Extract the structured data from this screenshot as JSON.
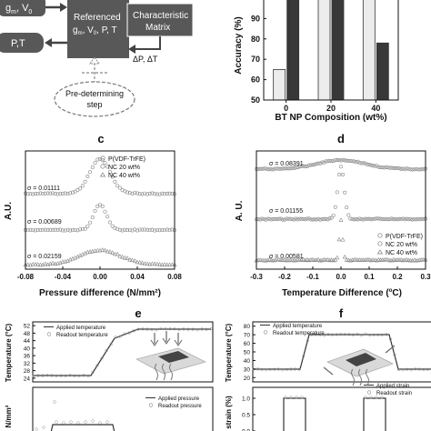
{
  "diagram": {
    "node_gv": "g",
    "node_gv_sub": "m",
    "node_gv_rest": ", V",
    "node_gv_sub2": "0",
    "node_pt": "P,T",
    "ref_line1": "Referenced",
    "ref_line2": "g",
    "ref_line2_sub": "m",
    "ref_line2_rest": ", V",
    "ref_line2_sub2": "0",
    "ref_line2_end": ", P, T",
    "char_line1": "Characteristic",
    "char_line2": "Matrix",
    "delta_label": "ΔP, ΔT",
    "pre_line1": "Pre-determining",
    "pre_line2": "step"
  },
  "chart_data": [
    {
      "id": "b",
      "type": "bar",
      "categories": [
        "0",
        "20",
        "40"
      ],
      "series": [
        {
          "name": "",
          "values": [
            65,
            100,
            100
          ],
          "color": "#ececec"
        },
        {
          "name": "",
          "values": [
            100,
            100,
            78
          ],
          "color": "#383838"
        }
      ],
      "xlabel": "BT NP Composition (wt%)",
      "ylabel": "Accuracy (%)",
      "ylim": [
        50,
        100
      ],
      "yticks": [
        "50",
        "60",
        "70",
        "80",
        "90"
      ]
    },
    {
      "id": "c",
      "panel_label": "c",
      "type": "scatter",
      "xlabel": "Pressure difference (N/mm²)",
      "ylabel": "A.U.",
      "xlim": [
        -0.08,
        0.08
      ],
      "xticks": [
        "-0.08",
        "-0.04",
        "0.00",
        "0.04",
        "0.08"
      ],
      "legend": [
        "P(VDF-TrFE)",
        "NC 20 wt%",
        "NC 40 wt%"
      ],
      "sigma_labels": [
        "σ = 0.01111",
        "σ = 0.00689",
        "σ = 0.02159"
      ],
      "series": [
        {
          "name": "P(VDF-TrFE)",
          "sigma": 0.01111
        },
        {
          "name": "NC 20 wt%",
          "sigma": 0.00689
        },
        {
          "name": "NC 40 wt%",
          "sigma": 0.02159
        }
      ]
    },
    {
      "id": "d",
      "panel_label": "d",
      "type": "scatter",
      "xlabel": "Temperature Difference (°C)",
      "xlabel_main": "Temperature Difference (",
      "xlabel_sup": "o",
      "xlabel_end": "C)",
      "ylabel": "A. U.",
      "xlim": [
        -0.3,
        0.3
      ],
      "xticks": [
        "-0.3",
        "-0.2",
        "-0.1",
        "0.0",
        "0.1",
        "0.2",
        "0.3"
      ],
      "legend": [
        "P(VDF-TrFE)",
        "NC 20 wt%",
        "NC 40 wt%"
      ],
      "sigma_labels": [
        "σ = 0.08391",
        "σ = 0.01155",
        "σ = 0.00581"
      ],
      "series": [
        {
          "name": "P(VDF-TrFE)",
          "sigma": 0.08391
        },
        {
          "name": "NC 20 wt%",
          "sigma": 0.01155
        },
        {
          "name": "NC 40 wt%",
          "sigma": 0.00581
        }
      ]
    },
    {
      "id": "e",
      "panel_label": "e",
      "type": "line",
      "ylabel_top": "Temperature (°C)",
      "ylabel_bottom": "N/mm²",
      "legend_top": [
        "Applied temperature",
        "Readout temperature"
      ],
      "legend_bottom": [
        "Applied pressure",
        "Readout pressure"
      ],
      "yticks_top": [
        "24",
        "28",
        "32",
        "36",
        "40",
        "44",
        "48",
        "52"
      ]
    },
    {
      "id": "f",
      "panel_label": "f",
      "type": "line",
      "ylabel_top": "Temperature (°C)",
      "ylabel_bottom": "le strain (%)",
      "legend_top": [
        "Applied temperature",
        "Readout temperature"
      ],
      "legend_bottom": [
        "Applied strain",
        "Readout strain"
      ],
      "yticks_top": [
        "20",
        "30",
        "40",
        "50",
        "60",
        "70",
        "80"
      ],
      "yticks_bottom": [
        "0.0",
        "0.5",
        "1.0"
      ]
    }
  ]
}
